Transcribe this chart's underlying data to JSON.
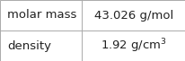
{
  "rows": [
    {
      "label": "molar mass",
      "value": "43.026 g/mol",
      "has_super": false,
      "base": "43.026 g/mol",
      "super": ""
    },
    {
      "label": "density",
      "value": "1.92 g/cm³",
      "has_super": true,
      "base": "1.92 g/cm",
      "super": "3"
    }
  ],
  "background_color": "#ffffff",
  "border_color": "#aaaaaa",
  "label_fontsize": 9.5,
  "value_fontsize": 9.5,
  "super_fontsize": 6.5,
  "text_color": "#222222",
  "col_split": 0.44
}
